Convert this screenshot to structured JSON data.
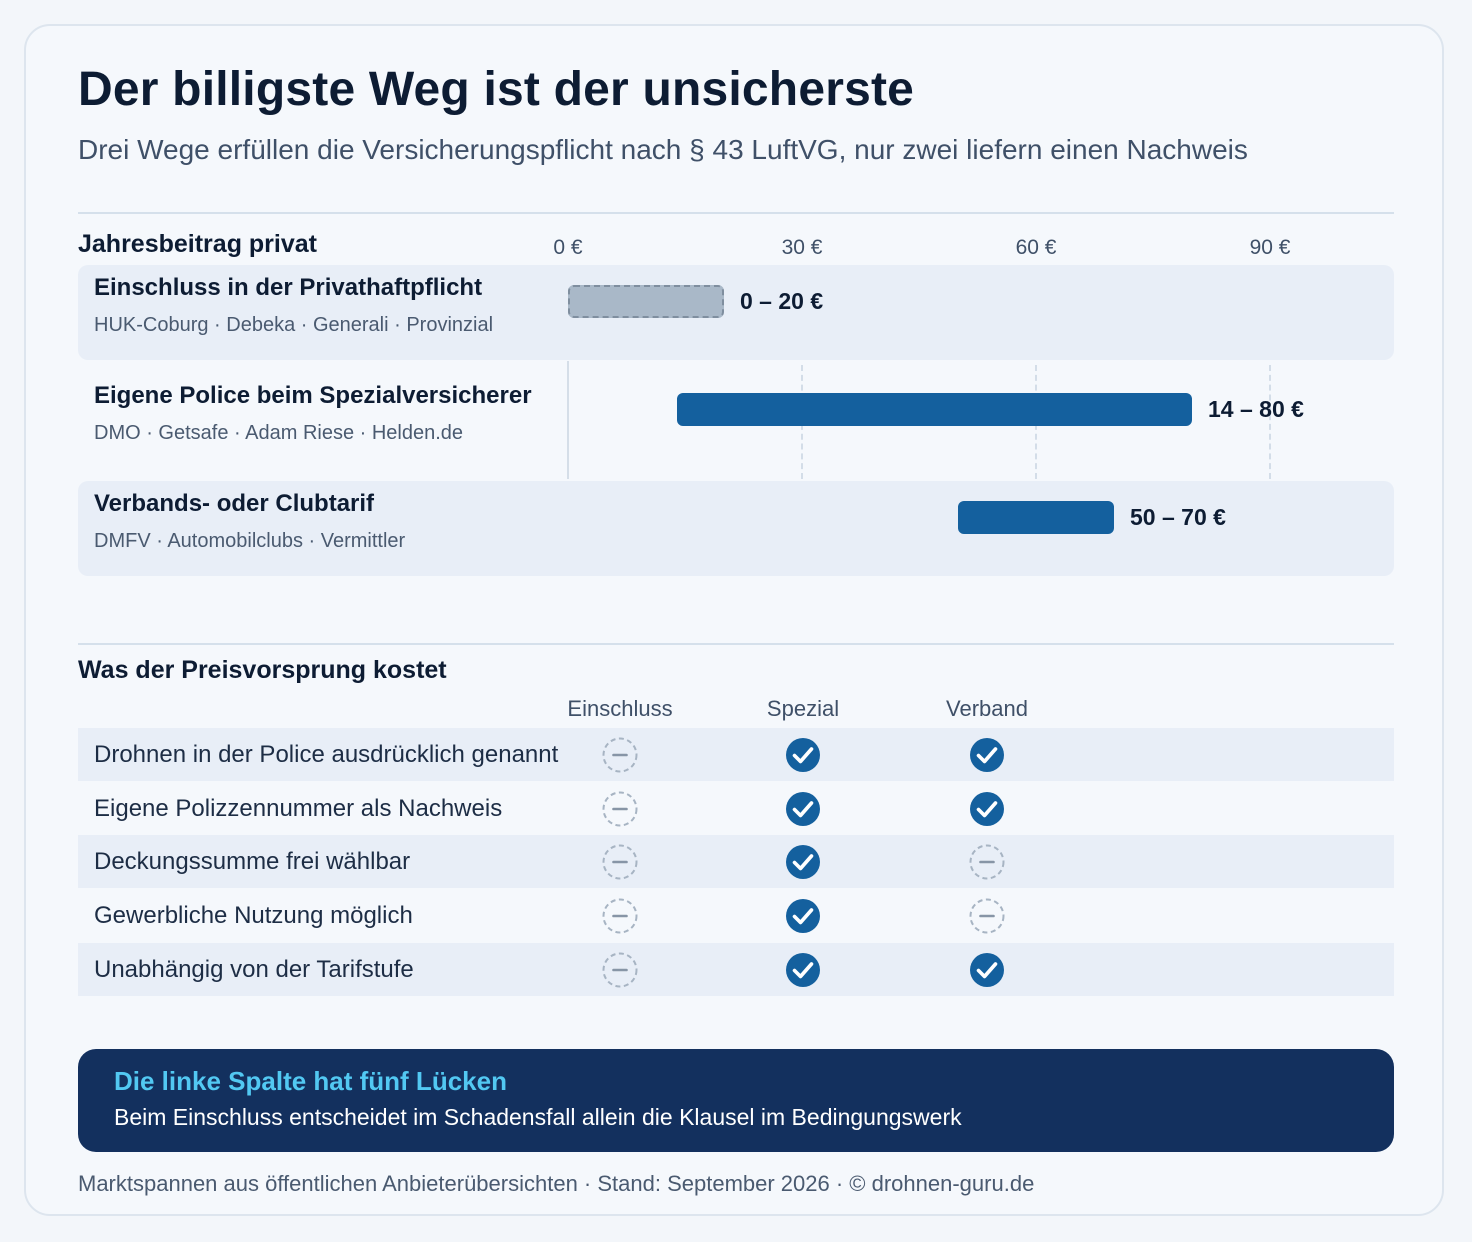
{
  "header": {
    "title": "Der billigste Weg ist der unsicherste",
    "subtitle": "Drei Wege erfüllen die Versicherungspflicht nach § 43 LuftVG, nur zwei liefern einen Nachweis"
  },
  "chart_data": {
    "type": "bar",
    "orientation": "horizontal-range",
    "section_title": "Jahresbeitrag privat",
    "xlim": [
      0,
      90
    ],
    "ticks": [
      {
        "value": 0,
        "label": "0 €"
      },
      {
        "value": 30,
        "label": "30 €"
      },
      {
        "value": 60,
        "label": "60 €"
      },
      {
        "value": 90,
        "label": "90 €"
      }
    ],
    "rows": [
      {
        "name": "Einschluss in der Privathaftpflicht",
        "providers": "HUK-Coburg · Debeka · Generali · Provinzial",
        "min": 0,
        "max": 20,
        "label": "0 – 20 €",
        "style": "dashed",
        "shaded": true
      },
      {
        "name": "Eigene Police beim Spezialversicherer",
        "providers": "DMO · Getsafe · Adam Riese · Helden.de",
        "min": 14,
        "max": 80,
        "label": "14 – 80 €",
        "style": "solid",
        "shaded": false
      },
      {
        "name": "Verbands- oder Clubtarif",
        "providers": "DMFV · Automobilclubs · Vermittler",
        "min": 50,
        "max": 70,
        "label": "50 – 70 €",
        "style": "solid",
        "shaded": true
      }
    ],
    "colors": {
      "solid": "#14609e",
      "dashed": "#a9b8c8"
    }
  },
  "comparison": {
    "title": "Was der Preisvorsprung kostet",
    "columns": [
      "Einschluss",
      "Spezial",
      "Verband"
    ],
    "rows": [
      {
        "label": "Drohnen in der Police ausdrücklich genannt",
        "values": [
          "no",
          "yes",
          "yes"
        ]
      },
      {
        "label": "Eigene Polizzennummer als Nachweis",
        "values": [
          "no",
          "yes",
          "yes"
        ]
      },
      {
        "label": "Deckungssumme frei wählbar",
        "values": [
          "no",
          "yes",
          "no"
        ]
      },
      {
        "label": "Gewerbliche Nutzung möglich",
        "values": [
          "no",
          "yes",
          "no"
        ]
      },
      {
        "label": "Unabhängig von der Tarifstufe",
        "values": [
          "no",
          "yes",
          "yes"
        ]
      }
    ],
    "icons": {
      "yes": "check-circle-icon",
      "no": "dash-circle-icon"
    }
  },
  "callout": {
    "title": "Die linke Spalte hat fünf Lücken",
    "text": "Beim Einschluss entscheidet im Schadensfall allein die Klausel im Bedingungswerk"
  },
  "footer": {
    "text": "Marktspannen aus öffentlichen Anbieterübersichten · Stand: September 2026 · © drohnen-guru.de"
  }
}
